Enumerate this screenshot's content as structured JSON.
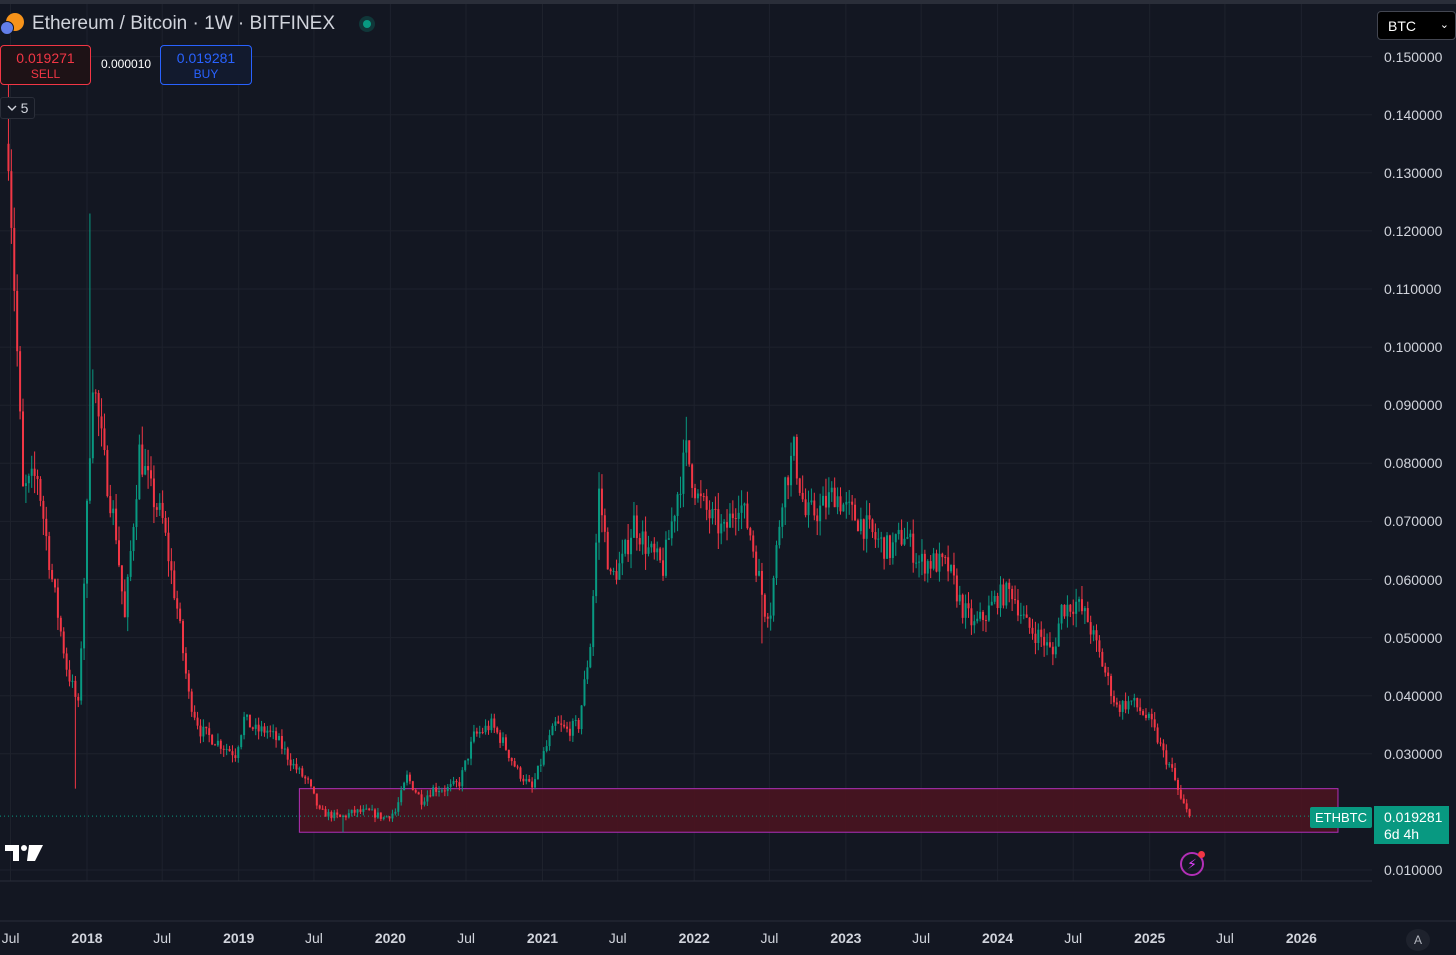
{
  "header": {
    "title": "Ethereum / Bitcoin · 1W · BITFINEX",
    "status": "market-open"
  },
  "trade": {
    "sell_price": "0.019271",
    "sell_label": "SELL",
    "spread": "0.000010",
    "buy_price": "0.019281",
    "buy_label": "BUY"
  },
  "indicators": {
    "collapse_count": "5"
  },
  "currency_selector": {
    "value": "BTC"
  },
  "price_axis": {
    "labels": [
      "0.150000",
      "0.140000",
      "0.130000",
      "0.120000",
      "0.110000",
      "0.100000",
      "0.090000",
      "0.080000",
      "0.070000",
      "0.060000",
      "0.050000",
      "0.040000",
      "0.030000",
      "0.010000"
    ]
  },
  "time_axis": {
    "labels": [
      "Jul",
      "2018",
      "Jul",
      "2019",
      "Jul",
      "2020",
      "Jul",
      "2021",
      "Jul",
      "2022",
      "Jul",
      "2023",
      "Jul",
      "2024",
      "Jul",
      "2025",
      "Jul",
      "2026"
    ]
  },
  "last_price": {
    "symbol": "ETHBTC",
    "price": "0.019281",
    "countdown": "6d 4h"
  },
  "bottom": {
    "auto_label": "A"
  },
  "colors": {
    "background": "#131722",
    "up": "#089981",
    "down": "#f23645",
    "zone_fill": "#4a1420",
    "zone_border": "#b22fb7"
  },
  "chart_data": {
    "type": "candlestick",
    "symbol": "ETHBTC",
    "interval": "1W",
    "exchange": "BITFINEX",
    "ylim": [
      0.01,
      0.15
    ],
    "x_range": [
      "2017-07",
      "2026-02"
    ],
    "close_path": [
      [
        "2017-06-26",
        0.135
      ],
      [
        "2017-07-31",
        0.075
      ],
      [
        "2017-09-04",
        0.078
      ],
      [
        "2017-10-09",
        0.06
      ],
      [
        "2017-11-13",
        0.045
      ],
      [
        "2017-12-11",
        0.038
      ],
      [
        "2017-12-25",
        0.06
      ],
      [
        "2018-01-15",
        0.095
      ],
      [
        "2018-02-12",
        0.08
      ],
      [
        "2018-03-12",
        0.068
      ],
      [
        "2018-04-02",
        0.053
      ],
      [
        "2018-05-07",
        0.082
      ],
      [
        "2018-06-04",
        0.075
      ],
      [
        "2018-07-02",
        0.07
      ],
      [
        "2018-08-06",
        0.055
      ],
      [
        "2018-09-03",
        0.04
      ],
      [
        "2018-10-01",
        0.034
      ],
      [
        "2018-11-12",
        0.032
      ],
      [
        "2018-12-24",
        0.03
      ],
      [
        "2019-01-14",
        0.036
      ],
      [
        "2019-02-11",
        0.034
      ],
      [
        "2019-03-11",
        0.034
      ],
      [
        "2019-04-08",
        0.032
      ],
      [
        "2019-05-13",
        0.028
      ],
      [
        "2019-06-17",
        0.025
      ],
      [
        "2019-07-15",
        0.02
      ],
      [
        "2019-09-02",
        0.019
      ],
      [
        "2019-10-07",
        0.02
      ],
      [
        "2019-11-11",
        0.02
      ],
      [
        "2019-12-16",
        0.019
      ],
      [
        "2020-01-13",
        0.02
      ],
      [
        "2020-02-10",
        0.026
      ],
      [
        "2020-03-16",
        0.022
      ],
      [
        "2020-04-13",
        0.024
      ],
      [
        "2020-05-18",
        0.024
      ],
      [
        "2020-06-15",
        0.025
      ],
      [
        "2020-07-20",
        0.033
      ],
      [
        "2020-08-31",
        0.035
      ],
      [
        "2020-09-28",
        0.032
      ],
      [
        "2020-11-02",
        0.027
      ],
      [
        "2020-12-07",
        0.024
      ],
      [
        "2021-01-04",
        0.03
      ],
      [
        "2021-02-01",
        0.035
      ],
      [
        "2021-03-01",
        0.034
      ],
      [
        "2021-03-29",
        0.035
      ],
      [
        "2021-04-26",
        0.049
      ],
      [
        "2021-05-17",
        0.075
      ],
      [
        "2021-06-14",
        0.06
      ],
      [
        "2021-07-12",
        0.063
      ],
      [
        "2021-08-09",
        0.07
      ],
      [
        "2021-09-13",
        0.065
      ],
      [
        "2021-10-18",
        0.062
      ],
      [
        "2021-11-22",
        0.075
      ],
      [
        "2021-12-13",
        0.082
      ],
      [
        "2022-01-10",
        0.074
      ],
      [
        "2022-02-07",
        0.071
      ],
      [
        "2022-03-14",
        0.068
      ],
      [
        "2022-04-18",
        0.074
      ],
      [
        "2022-05-16",
        0.068
      ],
      [
        "2022-06-20",
        0.055
      ],
      [
        "2022-07-04",
        0.055
      ],
      [
        "2022-08-01",
        0.075
      ],
      [
        "2022-08-29",
        0.082
      ],
      [
        "2022-09-26",
        0.071
      ],
      [
        "2022-10-31",
        0.072
      ],
      [
        "2022-12-05",
        0.075
      ],
      [
        "2023-01-02",
        0.072
      ],
      [
        "2023-02-06",
        0.07
      ],
      [
        "2023-03-13",
        0.067
      ],
      [
        "2023-04-17",
        0.065
      ],
      [
        "2023-05-22",
        0.068
      ],
      [
        "2023-06-26",
        0.063
      ],
      [
        "2023-07-31",
        0.063
      ],
      [
        "2023-09-04",
        0.062
      ],
      [
        "2023-10-09",
        0.055
      ],
      [
        "2023-11-06",
        0.052
      ],
      [
        "2023-12-04",
        0.054
      ],
      [
        "2024-01-01",
        0.057
      ],
      [
        "2024-02-05",
        0.058
      ],
      [
        "2024-03-11",
        0.052
      ],
      [
        "2024-04-15",
        0.05
      ],
      [
        "2024-05-13",
        0.047
      ],
      [
        "2024-06-03",
        0.055
      ],
      [
        "2024-07-08",
        0.056
      ],
      [
        "2024-08-05",
        0.053
      ],
      [
        "2024-09-02",
        0.047
      ],
      [
        "2024-10-14",
        0.038
      ],
      [
        "2024-11-18",
        0.039
      ],
      [
        "2024-12-16",
        0.037
      ],
      [
        "2025-01-06",
        0.035
      ],
      [
        "2025-02-03",
        0.03
      ],
      [
        "2025-02-24",
        0.027
      ],
      [
        "2025-03-17",
        0.022
      ],
      [
        "2025-04-07",
        0.019281
      ]
    ],
    "highs": [
      [
        "2017-06-26",
        0.148
      ],
      [
        "2018-01-08",
        0.123
      ],
      [
        "2021-12-13",
        0.088
      ],
      [
        "2022-09-05",
        0.085
      ]
    ],
    "lows": [
      [
        "2017-12-04",
        0.024
      ],
      [
        "2019-09-09",
        0.0165
      ],
      [
        "2022-06-13",
        0.049
      ],
      [
        "2025-04-07",
        0.019
      ]
    ],
    "highlight_zone": {
      "from": "2019-05-27",
      "to": "2026-03-30",
      "y_from": 0.0165,
      "y_to": 0.024
    },
    "last_price": 0.019281
  }
}
